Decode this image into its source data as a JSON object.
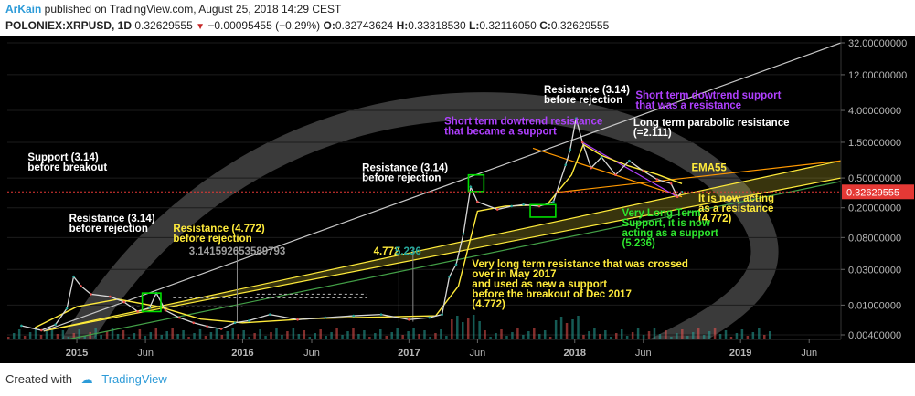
{
  "header": {
    "author": "ArKain",
    "published_text": " published on TradingView.com, August 25, 2018 14:29 CEST",
    "symbol": "POLONIEX:XRPUSD, 1D",
    "last": "0.32629555",
    "change": "−0.00095455 (−0.29%)",
    "o_label": "O:",
    "o": "0.32743624",
    "h_label": "H:",
    "h": "0.33318530",
    "l_label": "L:",
    "l": "0.32116050",
    "c_label": "C:",
    "c": "0.32629555"
  },
  "footer": {
    "created_with": "Created with",
    "brand": "TradingView"
  },
  "colors": {
    "background": "#000000",
    "price_label": "#e53935",
    "up": "#26a69a",
    "down": "#ef5350",
    "yellow": "#ffeb3b",
    "purple": "#b040ff",
    "green_box": "#00e000",
    "orange": "#ff9800"
  },
  "chart_data": {
    "type": "line",
    "y_scale": "log",
    "y_ticks": [
      "32.00000000",
      "12.00000000",
      "4.00000000",
      "1.50000000",
      "0.50000000",
      "0.20000000",
      "0.08000000",
      "0.03000000",
      "0.01000000",
      "0.00400000"
    ],
    "y_tick_values": [
      32,
      12,
      4,
      1.5,
      0.5,
      0.2,
      0.08,
      0.03,
      0.01,
      0.004
    ],
    "x_ticks": [
      "2015",
      "Jun",
      "2016",
      "Jun",
      "2017",
      "Jun",
      "2018",
      "Jun",
      "2019",
      "Jun"
    ],
    "x_tick_dates": [
      "2015-01-01",
      "2015-06-01",
      "2016-01-01",
      "2016-06-01",
      "2017-01-01",
      "2017-06-01",
      "2018-01-01",
      "2018-06-01",
      "2019-01-01",
      "2019-06-01"
    ],
    "x_range": [
      "2014-08-01",
      "2019-08-10"
    ],
    "current_price_label": "0.32629555",
    "current_price": 0.3263,
    "series": [
      {
        "values": [
          [
            "2014-09-01",
            0.0053
          ],
          [
            "2014-10-15",
            0.0046
          ],
          [
            "2014-11-15",
            0.0055
          ],
          [
            "2014-12-10",
            0.009
          ],
          [
            "2014-12-25",
            0.024
          ],
          [
            "2015-01-10",
            0.018
          ],
          [
            "2015-02-01",
            0.014
          ],
          [
            "2015-03-15",
            0.013
          ],
          [
            "2015-04-15",
            0.011
          ],
          [
            "2015-05-15",
            0.0082
          ],
          [
            "2015-06-10",
            0.0092
          ],
          [
            "2015-06-25",
            0.0145
          ],
          [
            "2015-07-15",
            0.0085
          ],
          [
            "2015-08-15",
            0.0068
          ],
          [
            "2015-09-15",
            0.0058
          ],
          [
            "2015-10-15",
            0.0052
          ],
          [
            "2015-11-15",
            0.0048
          ],
          [
            "2015-12-15",
            0.0058
          ],
          [
            "2016-01-15",
            0.0062
          ],
          [
            "2016-03-01",
            0.0075
          ],
          [
            "2016-05-01",
            0.0064
          ],
          [
            "2016-07-01",
            0.0068
          ],
          [
            "2016-09-01",
            0.0072
          ],
          [
            "2016-11-01",
            0.0075
          ],
          [
            "2017-01-01",
            0.0064
          ],
          [
            "2017-02-15",
            0.0068
          ],
          [
            "2017-03-15",
            0.0075
          ],
          [
            "2017-03-31",
            0.024
          ],
          [
            "2017-04-15",
            0.035
          ],
          [
            "2017-05-01",
            0.09
          ],
          [
            "2017-05-17",
            0.38
          ],
          [
            "2017-06-01",
            0.24
          ],
          [
            "2017-07-15",
            0.19
          ],
          [
            "2017-08-15",
            0.21
          ],
          [
            "2017-09-10",
            0.22
          ],
          [
            "2017-10-15",
            0.21
          ],
          [
            "2017-11-15",
            0.24
          ],
          [
            "2017-12-12",
            0.75
          ],
          [
            "2017-12-22",
            1.2
          ],
          [
            "2018-01-04",
            3.14
          ],
          [
            "2018-01-18",
            1.5
          ],
          [
            "2018-02-06",
            0.68
          ],
          [
            "2018-03-01",
            0.95
          ],
          [
            "2018-04-01",
            0.55
          ],
          [
            "2018-05-01",
            0.85
          ],
          [
            "2018-06-01",
            0.62
          ],
          [
            "2018-07-01",
            0.48
          ],
          [
            "2018-08-01",
            0.42
          ],
          [
            "2018-08-15",
            0.28
          ],
          [
            "2018-08-25",
            0.3263
          ]
        ]
      }
    ],
    "ema_label": "EMA55",
    "ema_values": [
      [
        "2014-10-01",
        0.005
      ],
      [
        "2015-01-01",
        0.0095
      ],
      [
        "2015-04-01",
        0.012
      ],
      [
        "2015-07-01",
        0.0095
      ],
      [
        "2015-10-01",
        0.0065
      ],
      [
        "2016-01-01",
        0.0058
      ],
      [
        "2016-06-01",
        0.0066
      ],
      [
        "2016-12-01",
        0.007
      ],
      [
        "2017-03-01",
        0.0072
      ],
      [
        "2017-04-20",
        0.018
      ],
      [
        "2017-06-01",
        0.18
      ],
      [
        "2017-08-01",
        0.21
      ],
      [
        "2017-11-01",
        0.22
      ],
      [
        "2017-12-25",
        0.55
      ],
      [
        "2018-01-20",
        1.4
      ],
      [
        "2018-03-01",
        1.0
      ],
      [
        "2018-05-01",
        0.72
      ],
      [
        "2018-07-01",
        0.56
      ],
      [
        "2018-08-25",
        0.42
      ]
    ],
    "lines": [
      {
        "color": "#ffeb3b",
        "from": [
          "2014-10-20",
          0.0045
        ],
        "to": [
          "2019-08-10",
          0.5
        ]
      },
      {
        "color": "#ffeb3b",
        "from": [
          "2014-10-20",
          0.0045
        ],
        "to": [
          "2019-08-10",
          0.85
        ]
      },
      {
        "color": "#c8c8c8",
        "from": [
          "2014-10-20",
          0.0045
        ],
        "to": [
          "2019-08-10",
          32
        ]
      },
      {
        "color": "#43a047",
        "from": [
          "2014-10-20",
          0.003
        ],
        "to": [
          "2019-08-10",
          0.45
        ]
      },
      {
        "color": "#ff9800",
        "from": [
          "2017-10-01",
          1.25
        ],
        "to": [
          "2018-08-25",
          0.28
        ]
      },
      {
        "color": "#ff9800",
        "from": [
          "2017-11-20",
          0.32
        ],
        "to": [
          "2019-08-10",
          0.85
        ]
      },
      {
        "color": "#b040ff",
        "from": [
          "2018-01-18",
          1.5
        ],
        "to": [
          "2018-08-15",
          0.28
        ]
      }
    ],
    "dashed_levels": [
      {
        "label": "3.141592653589793",
        "value": 0.0095,
        "from": "2015-05-01",
        "to": "2016-01-01"
      },
      {
        "label": "4.772",
        "value": 0.0125,
        "from": "2015-08-01",
        "to": "2016-10-01"
      },
      {
        "label": "5.236",
        "value": 0.014,
        "from": "2016-02-01",
        "to": "2016-10-01"
      }
    ],
    "boxes": [
      {
        "from": "2015-05-25",
        "to": "2015-07-05",
        "low": 0.0082,
        "high": 0.0145
      },
      {
        "from": "2017-05-12",
        "to": "2017-06-15",
        "low": 0.33,
        "high": 0.55
      },
      {
        "from": "2017-09-25",
        "to": "2017-11-20",
        "low": 0.15,
        "high": 0.22
      }
    ],
    "annotations": [
      {
        "lines": [
          "Support (3.14)",
          "before breakout"
        ],
        "color": "#ffffff",
        "date": "2014-09-15",
        "value": 0.85
      },
      {
        "lines": [
          "Resistance (3.14)",
          "before rejection"
        ],
        "color": "#ffffff",
        "date": "2014-12-15",
        "value": 0.13
      },
      {
        "lines": [
          "Resistance (4.772)",
          "before rejection"
        ],
        "color": "#ffeb3b",
        "date": "2015-08-01",
        "value": 0.095
      },
      {
        "lines": [
          "Resistance (3.14)",
          "before rejection"
        ],
        "color": "#ffffff",
        "date": "2016-09-20",
        "value": 0.62
      },
      {
        "lines": [
          "Resistance (3.14)",
          "before rejection"
        ],
        "color": "#ffffff",
        "date": "2017-10-25",
        "value": 6.8
      },
      {
        "lines": [
          "Short term dowtrend support",
          "that was a resistance"
        ],
        "color": "#b040ff",
        "date": "2018-05-15",
        "value": 5.8
      },
      {
        "lines": [
          "Short term dowtrend resistance",
          "that became a support"
        ],
        "color": "#b040ff",
        "date": "2017-03-20",
        "value": 2.6
      },
      {
        "lines": [
          "Long term parabolic resistance",
          "(=2.111)"
        ],
        "color": "#ffffff",
        "date": "2018-05-10",
        "value": 2.5
      },
      {
        "lines": [
          "EMA55"
        ],
        "color": "#ffeb3b",
        "date": "2018-09-15",
        "value": 0.62
      },
      {
        "lines": [
          "It is now acting",
          "as a resistance",
          "(4.772)"
        ],
        "color": "#ffeb3b",
        "date": "2018-09-30",
        "value": 0.24
      },
      {
        "lines": [
          "Very Long Term",
          "Support, it is now",
          "acting as a support",
          "(5.236)"
        ],
        "color": "#2ee62e",
        "date": "2018-04-15",
        "value": 0.155
      },
      {
        "lines": [
          "Very long term resistance that was crossed",
          "over in May 2017",
          "and used as new a support",
          "before the breakout of Dec 2017",
          "(4.772)"
        ],
        "color": "#ffeb3b",
        "date": "2017-05-20",
        "value": 0.032
      },
      {
        "lines": [
          "3.141592653589793"
        ],
        "color": "#9e9e9e",
        "date": "2015-09-05",
        "value": 0.0475
      },
      {
        "lines": [
          "4.772"
        ],
        "color": "#ffeb3b",
        "date": "2016-10-15",
        "value": 0.0475
      },
      {
        "lines": [
          "5.236"
        ],
        "color": "#26a69a",
        "date": "2016-12-01",
        "value": 0.0475
      }
    ]
  }
}
